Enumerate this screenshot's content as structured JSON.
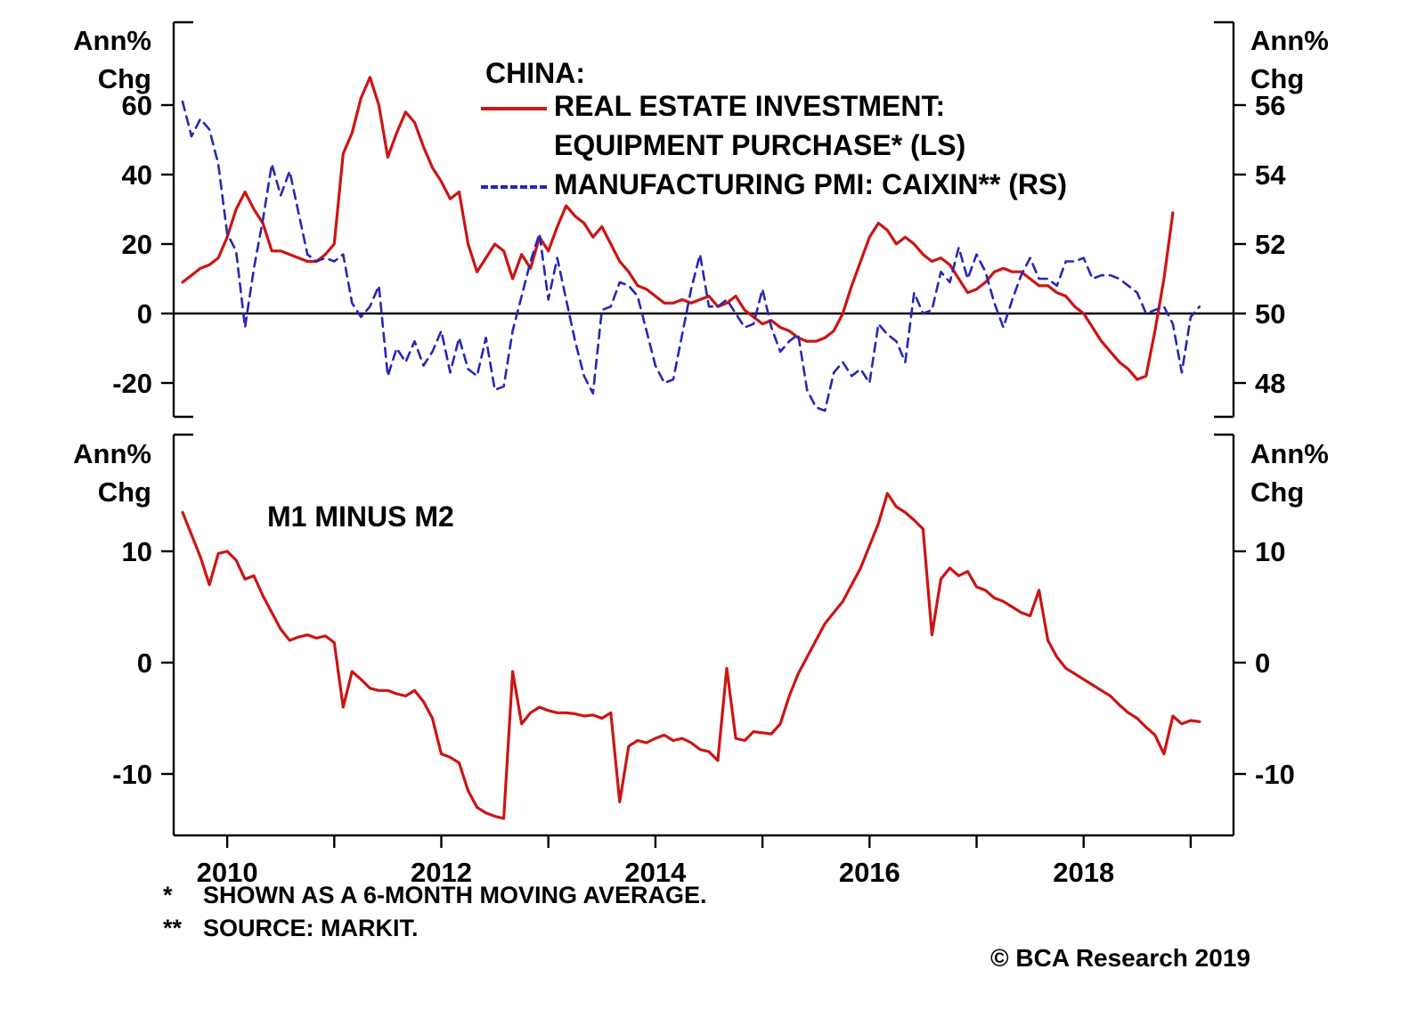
{
  "axis_unit": {
    "line1": "Ann%",
    "line2": "Chg"
  },
  "legend": {
    "title": "CHINA:",
    "series1_line1": "REAL ESTATE INVESTMENT:",
    "series1_line2": "EQUIPMENT PURCHASE* (LS)",
    "series2": "MANUFACTURING PMI: CAIXIN** (RS)"
  },
  "panel2_title": "M1 MINUS M2",
  "footnotes": [
    {
      "marker": "*",
      "text": "SHOWN AS A 6-MONTH MOVING AVERAGE."
    },
    {
      "marker": "**",
      "text": "SOURCE: MARKIT."
    }
  ],
  "copyright": "© BCA Research 2019",
  "colors": {
    "red": "#cc1414",
    "blue": "#2626b8",
    "axis": "#000000",
    "background": "#ffffff"
  },
  "chart_data": [
    {
      "type": "line",
      "title": "CHINA:",
      "x_range": [
        2009.5,
        2019.4
      ],
      "left_axis": {
        "label": "Ann% Chg",
        "ticks": [
          60,
          40,
          20,
          0,
          -20
        ]
      },
      "right_axis": {
        "label": "Ann% Chg",
        "ticks": [
          56,
          54,
          52,
          50,
          48
        ]
      },
      "zero_line": true,
      "series": [
        {
          "name": "REAL ESTATE INVESTMENT: EQUIPMENT PURCHASE* (LS)",
          "axis": "left",
          "style": "solid",
          "color_key": "red",
          "x_start": 2009.5833,
          "x_step": 0.0833333,
          "values": [
            9,
            11,
            13,
            14,
            16,
            22,
            30,
            35,
            30,
            26,
            18,
            18,
            17,
            16,
            15,
            15,
            17,
            20,
            46,
            52,
            62,
            68,
            60,
            45,
            52,
            58,
            55,
            48,
            42,
            38,
            33,
            35,
            20,
            12,
            16,
            20,
            18,
            10,
            17,
            13,
            22,
            18,
            25,
            31,
            28,
            26,
            22,
            25,
            20,
            15,
            12,
            8,
            7,
            5,
            3,
            3,
            4,
            3,
            4,
            5,
            2,
            3,
            5,
            1,
            -1,
            -3,
            -2,
            -4,
            -5,
            -7,
            -8,
            -8,
            -7,
            -5,
            0,
            8,
            15,
            22,
            26,
            24,
            20,
            22,
            20,
            17,
            15,
            16,
            14,
            10,
            6,
            7,
            9,
            12,
            13,
            12,
            12,
            10,
            8,
            8,
            6,
            5,
            2,
            0,
            -4,
            -8,
            -11,
            -14,
            -16,
            -19,
            -18,
            -5,
            10,
            29
          ]
        },
        {
          "name": "MANUFACTURING PMI: CAIXIN** (RS)",
          "axis": "right",
          "style": "dashed",
          "color_key": "blue",
          "x_start": 2009.5833,
          "x_step": 0.0833333,
          "values": [
            56.1,
            55.1,
            55.6,
            55.3,
            54.3,
            52.3,
            51.8,
            49.6,
            51.3,
            52.7,
            54.3,
            53.4,
            54.1,
            52.9,
            51.7,
            51.5,
            51.6,
            51.5,
            51.7,
            50.3,
            49.9,
            50.2,
            50.8,
            48.2,
            49.0,
            48.6,
            49.2,
            48.5,
            48.9,
            49.5,
            48.3,
            49.3,
            48.4,
            48.2,
            49.3,
            47.8,
            47.9,
            49.5,
            50.5,
            51.5,
            52.3,
            50.4,
            51.6,
            50.4,
            49.2,
            48.2,
            47.7,
            50.1,
            50.2,
            50.9,
            50.8,
            50.5,
            49.5,
            48.5,
            48.0,
            48.1,
            49.4,
            50.7,
            51.7,
            50.2,
            50.2,
            50.4,
            50.0,
            49.6,
            49.7,
            50.7,
            49.6,
            48.9,
            49.2,
            49.4,
            47.8,
            47.3,
            47.2,
            48.3,
            48.6,
            48.2,
            48.4,
            48.0,
            49.7,
            49.4,
            49.2,
            48.6,
            50.6,
            50.0,
            50.1,
            51.2,
            50.9,
            51.9,
            51.0,
            51.7,
            51.2,
            50.3,
            49.6,
            50.4,
            51.1,
            51.6,
            51.0,
            51.0,
            50.8,
            51.5,
            51.5,
            51.6,
            51.0,
            51.1,
            51.1,
            51.0,
            50.8,
            50.6,
            50.0,
            50.1,
            50.2,
            49.7,
            48.3,
            49.9,
            50.2
          ]
        }
      ]
    },
    {
      "type": "line",
      "title": "M1 MINUS M2",
      "x_range": [
        2009.5,
        2019.4
      ],
      "x_ticks": [
        2010,
        2011,
        2012,
        2013,
        2014,
        2015,
        2016,
        2017,
        2018,
        2019
      ],
      "x_tick_labels": [
        2010,
        2012,
        2014,
        2016,
        2018
      ],
      "left_axis": {
        "label": "Ann% Chg",
        "ticks": [
          10,
          0,
          -10
        ]
      },
      "right_axis": {
        "label": "Ann% Chg",
        "ticks": [
          10,
          0,
          -10
        ]
      },
      "series": [
        {
          "name": "M1 MINUS M2",
          "axis": "left",
          "style": "solid",
          "color_key": "red",
          "x_start": 2009.5833,
          "x_step": 0.0833333,
          "values": [
            13.5,
            11.5,
            9.5,
            7.0,
            9.8,
            10.0,
            9.2,
            7.5,
            7.8,
            6.0,
            4.5,
            3.0,
            2.0,
            2.3,
            2.5,
            2.2,
            2.4,
            1.8,
            -4.0,
            -0.8,
            -1.5,
            -2.3,
            -2.5,
            -2.5,
            -2.8,
            -3.0,
            -2.5,
            -3.5,
            -5.0,
            -8.2,
            -8.5,
            -9.0,
            -11.5,
            -13.0,
            -13.5,
            -13.8,
            -14.0,
            -0.8,
            -5.5,
            -4.5,
            -4.0,
            -4.3,
            -4.5,
            -4.5,
            -4.6,
            -4.8,
            -4.7,
            -5.0,
            -4.5,
            -12.5,
            -7.5,
            -7.0,
            -7.2,
            -6.8,
            -6.5,
            -7.0,
            -6.8,
            -7.2,
            -7.8,
            -8.0,
            -8.8,
            -0.5,
            -6.8,
            -7.0,
            -6.2,
            -6.3,
            -6.4,
            -5.5,
            -3.0,
            -1.0,
            0.5,
            2.0,
            3.5,
            4.5,
            5.5,
            7.0,
            8.5,
            10.5,
            12.5,
            15.2,
            14.0,
            13.5,
            12.8,
            12.0,
            2.5,
            7.5,
            8.5,
            7.8,
            8.2,
            6.8,
            6.5,
            5.8,
            5.5,
            5.0,
            4.5,
            4.2,
            6.5,
            2.0,
            0.5,
            -0.5,
            -1.0,
            -1.5,
            -2.0,
            -2.5,
            -3.0,
            -3.8,
            -4.5,
            -5.0,
            -5.8,
            -6.5,
            -8.2,
            -4.8,
            -5.5,
            -5.2,
            -5.3
          ]
        }
      ]
    }
  ]
}
